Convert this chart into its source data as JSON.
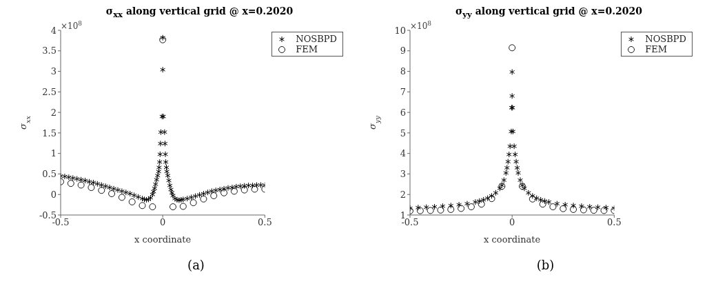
{
  "chart_data": [
    {
      "type": "scatter",
      "title": "σ$_{xx}$ along vertical grid @ x=0.2020",
      "xlabel": "x coordinate",
      "ylabel": "σ$_{xx}$",
      "xlim": [
        -0.5,
        0.5
      ],
      "xticks": [
        -0.5,
        0,
        0.5
      ],
      "ylim": [
        -0.5,
        4
      ],
      "yticks": [
        -0.5,
        0,
        0.5,
        1,
        1.5,
        2,
        2.5,
        3,
        3.5,
        4
      ],
      "grid": false,
      "legend": "top right",
      "annotations": [
        "×10$^{8}$",
        "(a)"
      ],
      "series": [
        {
          "name": "NOSBPD",
          "color": "#000000",
          "marker": "cross",
          "x": [
            -0.5,
            -0.48,
            -0.46,
            -0.44,
            -0.42,
            -0.4,
            -0.38,
            -0.36,
            -0.34,
            -0.32,
            -0.3,
            -0.28,
            -0.26,
            -0.24,
            -0.22,
            -0.2,
            -0.18,
            -0.16,
            -0.14,
            -0.12,
            -0.1,
            -0.09,
            -0.08,
            -0.07,
            -0.06,
            -0.05,
            -0.045,
            -0.04,
            -0.035,
            -0.03,
            -0.025,
            -0.02,
            -0.018,
            -0.015,
            -0.013,
            -0.011,
            -0.009,
            -0.003,
            0,
            0,
            0.003,
            0.009,
            0.011,
            0.013,
            0.015,
            0.018,
            0.02,
            0.025,
            0.03,
            0.035,
            0.04,
            0.045,
            0.05,
            0.06,
            0.07,
            0.08,
            0.09,
            0.1,
            0.12,
            0.14,
            0.16,
            0.18,
            0.2,
            0.22,
            0.24,
            0.26,
            0.28,
            0.3,
            0.32,
            0.34,
            0.36,
            0.38,
            0.4,
            0.42,
            0.44,
            0.46,
            0.48,
            0.5
          ],
          "values": [
            0.45,
            0.44,
            0.42,
            0.4,
            0.38,
            0.36,
            0.34,
            0.31,
            0.29,
            0.26,
            0.23,
            0.2,
            0.17,
            0.14,
            0.11,
            0.08,
            0.05,
            0.02,
            -0.02,
            -0.06,
            -0.1,
            -0.12,
            -0.13,
            -0.12,
            -0.08,
            0.0,
            0.07,
            0.15,
            0.25,
            0.36,
            0.46,
            0.56,
            0.66,
            0.79,
            0.98,
            1.24,
            1.52,
            1.9,
            3.04,
            3.82,
            1.9,
            1.52,
            1.24,
            0.98,
            0.79,
            0.66,
            0.56,
            0.46,
            0.34,
            0.22,
            0.12,
            0.04,
            -0.03,
            -0.1,
            -0.13,
            -0.14,
            -0.13,
            -0.12,
            -0.1,
            -0.07,
            -0.04,
            -0.01,
            0.02,
            0.05,
            0.08,
            0.1,
            0.12,
            0.14,
            0.16,
            0.17,
            0.19,
            0.2,
            0.21,
            0.22,
            0.22,
            0.23,
            0.23,
            0.23
          ]
        },
        {
          "name": "FEM",
          "color": "#000000",
          "marker": "circle",
          "x": [
            -0.5,
            -0.45,
            -0.4,
            -0.35,
            -0.3,
            -0.25,
            -0.2,
            -0.15,
            -0.1,
            -0.05,
            0,
            0.05,
            0.1,
            0.15,
            0.2,
            0.25,
            0.3,
            0.35,
            0.4,
            0.45,
            0.5
          ],
          "values": [
            0.31,
            0.27,
            0.23,
            0.17,
            0.1,
            0.02,
            -0.07,
            -0.18,
            -0.27,
            -0.3,
            3.77,
            -0.3,
            -0.29,
            -0.2,
            -0.11,
            -0.03,
            0.04,
            0.08,
            0.11,
            0.13,
            0.13
          ]
        }
      ]
    },
    {
      "type": "scatter",
      "title": "σ$_{yy}$ along vertical grid @ x=0.2020",
      "xlabel": "x coordinate",
      "ylabel": "σ$_{yy}$",
      "xlim": [
        -0.5,
        0.5
      ],
      "xticks": [
        -0.5,
        0,
        0.5
      ],
      "ylim": [
        1,
        10
      ],
      "yticks": [
        1,
        2,
        3,
        4,
        5,
        6,
        7,
        8,
        9,
        10
      ],
      "grid": false,
      "legend": "top right",
      "annotations": [
        "×10$^{8}$",
        "(b)"
      ],
      "series": [
        {
          "name": "NOSBPD",
          "color": "#000000",
          "marker": "cross",
          "x": [
            -0.5,
            -0.46,
            -0.42,
            -0.38,
            -0.34,
            -0.3,
            -0.26,
            -0.22,
            -0.18,
            -0.16,
            -0.14,
            -0.12,
            -0.1,
            -0.08,
            -0.06,
            -0.05,
            -0.04,
            -0.03,
            -0.025,
            -0.02,
            -0.015,
            -0.01,
            -0.004,
            -0.002,
            0,
            0,
            0.002,
            0.004,
            0.01,
            0.015,
            0.02,
            0.025,
            0.03,
            0.04,
            0.05,
            0.06,
            0.08,
            0.1,
            0.12,
            0.14,
            0.16,
            0.18,
            0.22,
            0.26,
            0.3,
            0.34,
            0.38,
            0.42,
            0.46,
            0.5
          ],
          "values": [
            1.33,
            1.36,
            1.38,
            1.4,
            1.43,
            1.46,
            1.5,
            1.55,
            1.63,
            1.68,
            1.74,
            1.82,
            1.93,
            2.08,
            2.3,
            2.45,
            2.7,
            3.05,
            3.3,
            3.6,
            3.95,
            4.35,
            5.07,
            6.23,
            6.8,
            7.97,
            6.23,
            5.07,
            4.35,
            3.95,
            3.6,
            3.3,
            3.05,
            2.7,
            2.45,
            2.3,
            2.08,
            1.93,
            1.82,
            1.74,
            1.68,
            1.63,
            1.55,
            1.5,
            1.46,
            1.43,
            1.4,
            1.38,
            1.36,
            1.33
          ]
        },
        {
          "name": "FEM",
          "color": "#000000",
          "marker": "circle",
          "x": [
            -0.5,
            -0.45,
            -0.4,
            -0.35,
            -0.3,
            -0.25,
            -0.2,
            -0.15,
            -0.1,
            -0.05,
            0,
            0.05,
            0.1,
            0.15,
            0.2,
            0.25,
            0.3,
            0.35,
            0.4,
            0.45,
            0.5
          ],
          "values": [
            1.2,
            1.21,
            1.22,
            1.24,
            1.27,
            1.32,
            1.4,
            1.53,
            1.8,
            2.4,
            9.15,
            2.4,
            1.78,
            1.53,
            1.4,
            1.31,
            1.27,
            1.25,
            1.23,
            1.22,
            1.22
          ]
        }
      ]
    }
  ]
}
